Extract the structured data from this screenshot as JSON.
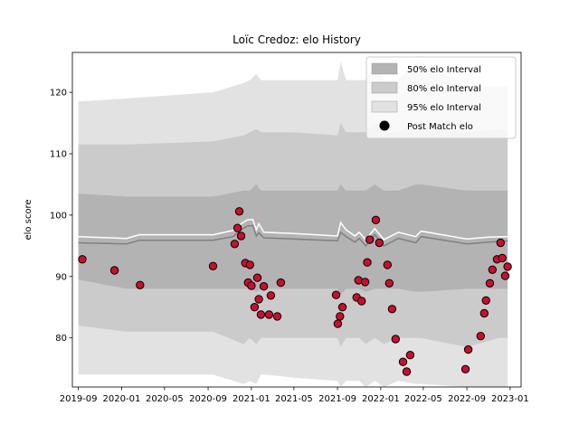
{
  "chart_data": {
    "type": "line",
    "title": "Loïc Credoz: elo History",
    "xlabel": "",
    "ylabel": "elo score",
    "xlim": [
      "2019-08-15",
      "2023-02-01"
    ],
    "ylim": [
      72,
      126.5
    ],
    "grid": false,
    "legend_placement": "top-right",
    "x_ticks": [
      "2019-09",
      "2020-01",
      "2020-05",
      "2020-09",
      "2021-01",
      "2021-05",
      "2021-09",
      "2022-01",
      "2022-05",
      "2022-09",
      "2023-01"
    ],
    "x_tick_labels": [
      "2019-09",
      "2020-01",
      "2020-05",
      "2020-09",
      "2021-01",
      "2021-05",
      "2021-09",
      "2022-01",
      "2022-05",
      "2022-09",
      "2023-01"
    ],
    "y_ticks": [
      80,
      90,
      100,
      110,
      120
    ],
    "colors": {
      "band95": "#e2e2e2",
      "band80": "#cbcbcb",
      "band50": "#b3b3b3",
      "elo_line": "#ffffff",
      "median_line": "#808080",
      "points": "#c8102e"
    },
    "legend": [
      {
        "label": "50% elo Interval",
        "kind": "band50"
      },
      {
        "label": "80% elo Interval",
        "kind": "band80"
      },
      {
        "label": "95% elo Interval",
        "kind": "band95"
      },
      {
        "label": "Post Match elo",
        "kind": "points"
      }
    ],
    "bands": {
      "x": [
        "2019-09-01",
        "2020-01-15",
        "2020-09-15",
        "2020-12-10",
        "2020-12-28",
        "2021-01-15",
        "2021-01-28",
        "2021-02-10",
        "2021-05-01",
        "2021-09-01",
        "2021-09-10",
        "2021-09-25",
        "2021-11-01",
        "2021-11-20",
        "2021-12-15",
        "2022-01-10",
        "2022-02-20",
        "2022-04-10",
        "2022-04-25",
        "2022-09-01",
        "2022-12-01",
        "2022-12-25"
      ],
      "lo95": [
        74,
        74,
        74,
        72.5,
        73,
        72.5,
        74,
        74,
        73.5,
        73,
        72,
        73,
        73,
        72,
        73,
        72,
        73,
        72.5,
        72.5,
        72,
        72,
        72
      ],
      "lo80": [
        82,
        81,
        81,
        79,
        80,
        79,
        80,
        80,
        80,
        80,
        78.5,
        80,
        80,
        79,
        80,
        79,
        80,
        80,
        80,
        78.5,
        80,
        80
      ],
      "lo50": [
        89.5,
        88,
        88,
        88,
        88,
        87.5,
        88,
        88,
        88,
        88,
        87,
        88,
        88,
        87.5,
        88,
        88,
        88,
        87.5,
        87.5,
        88,
        88,
        88
      ],
      "hi50": [
        103.5,
        103,
        103,
        104,
        104,
        105,
        104,
        104,
        104,
        104,
        105,
        104,
        104,
        104,
        105,
        104,
        104,
        105,
        105,
        104,
        104,
        104
      ],
      "hi80": [
        111.5,
        111.5,
        112,
        113,
        113.5,
        114,
        113.5,
        113.5,
        113.5,
        113,
        115,
        113.5,
        113.5,
        113.5,
        115,
        113.5,
        113.5,
        115,
        115,
        113.5,
        114,
        114
      ],
      "hi95": [
        118.5,
        119,
        120,
        121.5,
        122,
        123,
        122,
        122,
        122,
        122,
        125,
        122,
        122,
        122,
        125,
        122,
        122,
        125,
        125,
        121,
        121,
        121
      ]
    },
    "series": [
      {
        "x": [
          "2019-09-01",
          "2020-01-15",
          "2020-02-20",
          "2020-09-15",
          "2020-11-10",
          "2020-12-01",
          "2020-12-20",
          "2021-01-05",
          "2021-01-15",
          "2021-01-22",
          "2021-02-05",
          "2021-05-01",
          "2021-09-01",
          "2021-09-10",
          "2021-09-25",
          "2021-10-20",
          "2021-11-01",
          "2021-11-20",
          "2021-12-15",
          "2022-01-10",
          "2022-02-20",
          "2022-04-10",
          "2022-04-25",
          "2022-09-01",
          "2022-11-01",
          "2022-12-25"
        ],
        "values": [
          96.5,
          96.2,
          96.8,
          96.8,
          97.5,
          98.5,
          99.2,
          99.3,
          97.6,
          98.6,
          97.2,
          97.0,
          96.6,
          98.8,
          97.6,
          96.6,
          97.2,
          96.0,
          97.8,
          96.0,
          97.2,
          96.5,
          97.4,
          96.1,
          96.4,
          96.5
        ]
      },
      {
        "x": [
          "2019-09-01",
          "2020-01-15",
          "2020-02-20",
          "2020-09-15",
          "2020-11-10",
          "2020-12-01",
          "2020-12-20",
          "2021-01-05",
          "2021-01-15",
          "2021-01-22",
          "2021-02-05",
          "2021-05-01",
          "2021-09-01",
          "2021-09-10",
          "2021-09-25",
          "2021-10-20",
          "2021-11-01",
          "2021-11-20",
          "2021-12-15",
          "2022-01-10",
          "2022-02-20",
          "2022-04-10",
          "2022-04-25",
          "2022-09-01",
          "2022-11-01",
          "2022-12-25"
        ],
        "values": [
          95.5,
          95.3,
          95.9,
          95.9,
          96.5,
          97.5,
          98.2,
          98.3,
          96.6,
          97.1,
          96.3,
          96.1,
          95.8,
          97.2,
          96.5,
          95.6,
          96.2,
          95.0,
          96.8,
          95.0,
          96.2,
          95.5,
          96.5,
          95.3,
          95.6,
          95.8
        ]
      },
      {
        "type": "scatter",
        "points": [
          [
            "2019-09-12",
            92.8
          ],
          [
            "2019-12-12",
            91.0
          ],
          [
            "2020-02-22",
            88.6
          ],
          [
            "2020-09-15",
            91.7
          ],
          [
            "2020-11-15",
            95.3
          ],
          [
            "2020-11-23",
            97.9
          ],
          [
            "2020-11-28",
            100.6
          ],
          [
            "2020-12-03",
            96.6
          ],
          [
            "2020-12-15",
            92.2
          ],
          [
            "2020-12-23",
            89.0
          ],
          [
            "2020-12-28",
            91.9
          ],
          [
            "2021-01-01",
            88.5
          ],
          [
            "2021-01-10",
            85.0
          ],
          [
            "2021-01-18",
            89.8
          ],
          [
            "2021-01-22",
            86.3
          ],
          [
            "2021-01-28",
            83.8
          ],
          [
            "2021-02-05",
            88.4
          ],
          [
            "2021-02-20",
            83.8
          ],
          [
            "2021-02-25",
            86.9
          ],
          [
            "2021-03-15",
            83.5
          ],
          [
            "2021-03-25",
            89.0
          ],
          [
            "2021-08-28",
            87.0
          ],
          [
            "2021-09-02",
            82.3
          ],
          [
            "2021-09-08",
            83.5
          ],
          [
            "2021-09-15",
            85.0
          ],
          [
            "2021-10-25",
            86.6
          ],
          [
            "2021-10-30",
            89.4
          ],
          [
            "2021-11-08",
            86.0
          ],
          [
            "2021-11-18",
            89.1
          ],
          [
            "2021-11-24",
            92.3
          ],
          [
            "2021-12-01",
            96.0
          ],
          [
            "2021-12-18",
            99.2
          ],
          [
            "2021-12-28",
            95.5
          ],
          [
            "2022-01-20",
            91.9
          ],
          [
            "2022-01-25",
            88.9
          ],
          [
            "2022-02-02",
            84.7
          ],
          [
            "2022-02-12",
            79.8
          ],
          [
            "2022-03-05",
            76.1
          ],
          [
            "2022-03-15",
            74.5
          ],
          [
            "2022-03-25",
            77.2
          ],
          [
            "2022-08-28",
            74.9
          ],
          [
            "2022-09-05",
            78.1
          ],
          [
            "2022-10-10",
            80.3
          ],
          [
            "2022-10-20",
            84.0
          ],
          [
            "2022-10-25",
            86.1
          ],
          [
            "2022-11-05",
            88.9
          ],
          [
            "2022-11-12",
            91.1
          ],
          [
            "2022-11-25",
            92.8
          ],
          [
            "2022-12-05",
            95.5
          ],
          [
            "2022-12-10",
            93.0
          ],
          [
            "2022-12-18",
            90.1
          ],
          [
            "2022-12-25",
            91.6
          ]
        ]
      }
    ]
  }
}
